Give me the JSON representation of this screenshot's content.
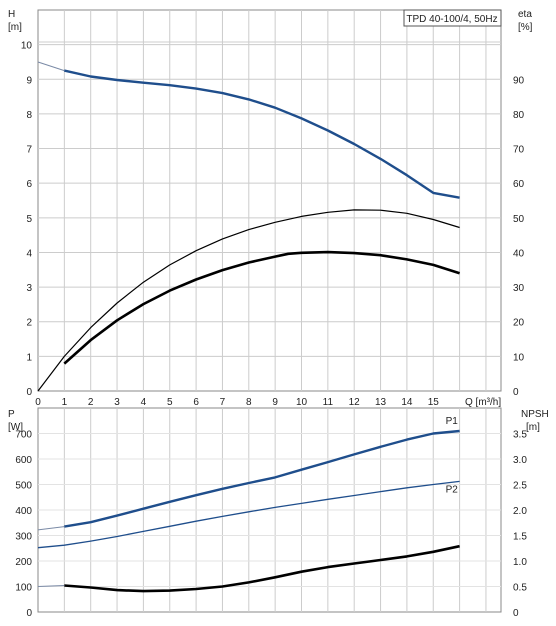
{
  "chart_data": [
    {
      "type": "line",
      "title": "TPD 40-100/4, 50Hz",
      "x_axis": {
        "label": "Q [m³/h]",
        "range": [
          0,
          16
        ],
        "ticks": [
          0,
          1,
          2,
          3,
          4,
          5,
          6,
          7,
          8,
          9,
          10,
          11,
          12,
          13,
          14,
          15
        ]
      },
      "y_axis_left": {
        "unit_top": "H",
        "unit_bottom": "[m]",
        "range": [
          0,
          11
        ],
        "ticks": [
          0,
          1,
          2,
          3,
          4,
          5,
          6,
          7,
          8,
          9,
          10
        ]
      },
      "y_axis_right": {
        "unit_top": "eta",
        "unit_bottom": "[%]",
        "range": [
          0,
          110
        ],
        "ticks": [
          0,
          10,
          20,
          30,
          40,
          50,
          60,
          70,
          80,
          90
        ]
      },
      "grid": true,
      "series": [
        {
          "id": "head",
          "axis": "left",
          "color": "#1f4e8c",
          "points": [
            [
              1,
              9.25
            ],
            [
              2,
              9.08
            ],
            [
              3,
              8.98
            ],
            [
              4,
              8.9
            ],
            [
              5,
              8.83
            ],
            [
              6,
              8.73
            ],
            [
              7,
              8.6
            ],
            [
              8,
              8.42
            ],
            [
              9,
              8.18
            ],
            [
              10,
              7.87
            ],
            [
              11,
              7.52
            ],
            [
              12,
              7.13
            ],
            [
              13,
              6.7
            ],
            [
              14,
              6.23
            ],
            [
              15,
              5.72
            ],
            [
              16,
              5.58
            ]
          ]
        },
        {
          "id": "head-extrapolated",
          "axis": "left",
          "color": "#7a8aa6",
          "points": [
            [
              0,
              9.5
            ],
            [
              1,
              9.25
            ]
          ]
        },
        {
          "id": "eta",
          "axis": "right",
          "color": "#000000",
          "points": [
            [
              0,
              0
            ],
            [
              1,
              10
            ],
            [
              2,
              18.3
            ],
            [
              3,
              25.4
            ],
            [
              4,
              31.4
            ],
            [
              5,
              36.4
            ],
            [
              6,
              40.5
            ],
            [
              7,
              43.9
            ],
            [
              8,
              46.6
            ],
            [
              9,
              48.7
            ],
            [
              10,
              50.4
            ],
            [
              11,
              51.6
            ],
            [
              12,
              52.3
            ],
            [
              13,
              52.2
            ],
            [
              14,
              51.3
            ],
            [
              15,
              49.5
            ],
            [
              16,
              47.2
            ]
          ]
        },
        {
          "id": "eta-thick",
          "axis": "right",
          "color": "#000000",
          "points": [
            [
              1,
              7.9
            ],
            [
              2,
              14.7
            ],
            [
              3,
              20.4
            ],
            [
              4,
              25.1
            ],
            [
              5,
              29.0
            ],
            [
              6,
              32.2
            ],
            [
              7,
              34.9
            ],
            [
              8,
              37.1
            ],
            [
              9,
              38.8
            ],
            [
              9.5,
              39.6
            ],
            [
              10,
              39.9
            ],
            [
              11,
              40.1
            ],
            [
              12,
              39.8
            ],
            [
              13,
              39.2
            ],
            [
              14,
              38.0
            ],
            [
              15,
              36.4
            ],
            [
              16,
              34.0
            ]
          ]
        }
      ]
    },
    {
      "type": "line",
      "x_axis": {
        "range": [
          0,
          16
        ]
      },
      "y_axis_left": {
        "unit_top": "P",
        "unit_bottom": "[W]",
        "range": [
          0,
          800
        ],
        "ticks": [
          0,
          100,
          200,
          300,
          400,
          500,
          600,
          700
        ]
      },
      "y_axis_right": {
        "unit_top": "NPSH",
        "unit_bottom": "[m]",
        "range": [
          0,
          4
        ],
        "ticks": [
          0,
          0.5,
          1.0,
          1.5,
          2.0,
          2.5,
          3.0,
          3.5
        ],
        "tick_labels": [
          "0",
          "0.5",
          "1.0",
          "1.5",
          "2.0",
          "2.5",
          "3.0",
          "3.5"
        ]
      },
      "grid": true,
      "series": [
        {
          "id": "p1",
          "name": "P1",
          "axis": "left",
          "color": "#1f4e8c",
          "points": [
            [
              1,
              335
            ],
            [
              2,
              352
            ],
            [
              3,
              378
            ],
            [
              4,
              405
            ],
            [
              5,
              432
            ],
            [
              6,
              458
            ],
            [
              7,
              483
            ],
            [
              8,
              506
            ],
            [
              9,
              528
            ],
            [
              10,
              558
            ],
            [
              11,
              588
            ],
            [
              12,
              618
            ],
            [
              13,
              648
            ],
            [
              14,
              676
            ],
            [
              15,
              700
            ],
            [
              16,
              710
            ]
          ]
        },
        {
          "id": "p1-extrapolated",
          "axis": "left",
          "color": "#7a8aa6",
          "points": [
            [
              0,
              322
            ],
            [
              1,
              335
            ]
          ]
        },
        {
          "id": "p2",
          "name": "P2",
          "axis": "left",
          "color": "#1f4e8c",
          "points": [
            [
              0,
              252
            ],
            [
              1,
              262
            ],
            [
              2,
              278
            ],
            [
              3,
              296
            ],
            [
              4,
              316
            ],
            [
              5,
              336
            ],
            [
              6,
              356
            ],
            [
              7,
              375
            ],
            [
              8,
              393
            ],
            [
              9,
              410
            ],
            [
              10,
              426
            ],
            [
              11,
              442
            ],
            [
              12,
              457
            ],
            [
              13,
              472
            ],
            [
              14,
              487
            ],
            [
              15,
              500
            ],
            [
              16,
              512
            ]
          ]
        },
        {
          "id": "npsh",
          "axis": "right",
          "color": "#000000",
          "points": [
            [
              1,
              0.52
            ],
            [
              2,
              0.48
            ],
            [
              3,
              0.43
            ],
            [
              4,
              0.41
            ],
            [
              5,
              0.42
            ],
            [
              6,
              0.45
            ],
            [
              7,
              0.5
            ],
            [
              8,
              0.58
            ],
            [
              9,
              0.68
            ],
            [
              10,
              0.79
            ],
            [
              11,
              0.88
            ],
            [
              12,
              0.95
            ],
            [
              13,
              1.02
            ],
            [
              14,
              1.09
            ],
            [
              15,
              1.18
            ],
            [
              16,
              1.29
            ]
          ]
        },
        {
          "id": "npsh-extrapolated",
          "axis": "right",
          "color": "#7a8aa6",
          "points": [
            [
              0,
              0.5
            ],
            [
              1,
              0.52
            ]
          ]
        }
      ]
    }
  ]
}
